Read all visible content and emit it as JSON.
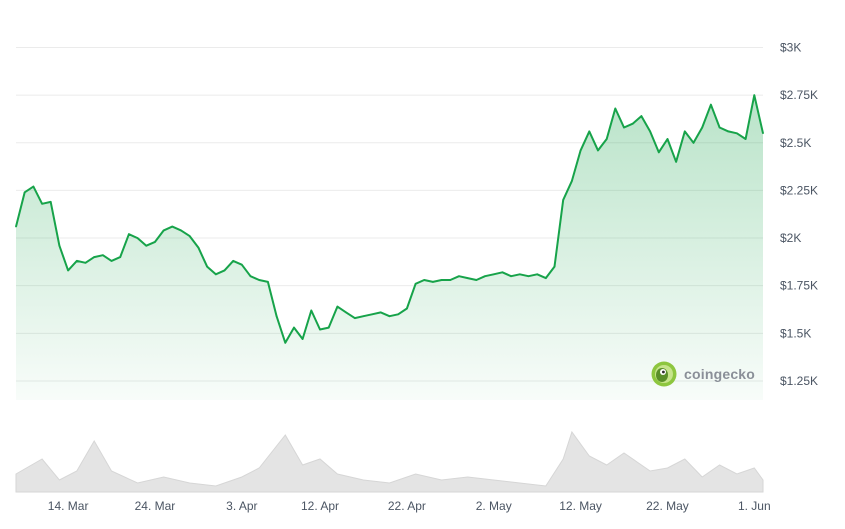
{
  "watermark": {
    "brand": "coingecko",
    "icon": "gecko-logo-icon"
  },
  "chart_data": {
    "type": "area",
    "title": "",
    "xlabel": "",
    "ylabel": "",
    "y_axis_position": "right",
    "grid": true,
    "ylim": [
      1150,
      3050
    ],
    "xlim": [
      "2024-03-08",
      "2024-06-02"
    ],
    "y_ticks": [
      {
        "value": 3000,
        "label": "$3K"
      },
      {
        "value": 2750,
        "label": "$2.75K"
      },
      {
        "value": 2500,
        "label": "$2.5K"
      },
      {
        "value": 2250,
        "label": "$2.25K"
      },
      {
        "value": 2000,
        "label": "$2K"
      },
      {
        "value": 1750,
        "label": "$1.75K"
      },
      {
        "value": 1500,
        "label": "$1.5K"
      },
      {
        "value": 1250,
        "label": "$1.25K"
      }
    ],
    "x_ticks": [
      {
        "date": "2024-03-14",
        "label": "14. Mar"
      },
      {
        "date": "2024-03-24",
        "label": "24. Mar"
      },
      {
        "date": "2024-04-03",
        "label": "3. Apr"
      },
      {
        "date": "2024-04-12",
        "label": "12. Apr"
      },
      {
        "date": "2024-04-22",
        "label": "22. Apr"
      },
      {
        "date": "2024-05-02",
        "label": "2. May"
      },
      {
        "date": "2024-05-12",
        "label": "12. May"
      },
      {
        "date": "2024-05-22",
        "label": "22. May"
      },
      {
        "date": "2024-06-01",
        "label": "1. Jun"
      }
    ],
    "colors": {
      "line": "#17a34a",
      "fill": "#16a34a",
      "volume": "#dcdcdc"
    },
    "series": [
      {
        "values": [
          [
            "2024-03-08",
            2060
          ],
          [
            "2024-03-09",
            2240
          ],
          [
            "2024-03-10",
            2270
          ],
          [
            "2024-03-11",
            2180
          ],
          [
            "2024-03-12",
            2190
          ],
          [
            "2024-03-13",
            1960
          ],
          [
            "2024-03-14",
            1830
          ],
          [
            "2024-03-15",
            1880
          ],
          [
            "2024-03-16",
            1870
          ],
          [
            "2024-03-17",
            1900
          ],
          [
            "2024-03-18",
            1910
          ],
          [
            "2024-03-19",
            1880
          ],
          [
            "2024-03-20",
            1900
          ],
          [
            "2024-03-21",
            2020
          ],
          [
            "2024-03-22",
            2000
          ],
          [
            "2024-03-23",
            1960
          ],
          [
            "2024-03-24",
            1980
          ],
          [
            "2024-03-25",
            2040
          ],
          [
            "2024-03-26",
            2060
          ],
          [
            "2024-03-27",
            2040
          ],
          [
            "2024-03-28",
            2010
          ],
          [
            "2024-03-29",
            1950
          ],
          [
            "2024-03-30",
            1850
          ],
          [
            "2024-03-31",
            1810
          ],
          [
            "2024-04-01",
            1830
          ],
          [
            "2024-04-02",
            1880
          ],
          [
            "2024-04-03",
            1860
          ],
          [
            "2024-04-04",
            1800
          ],
          [
            "2024-04-05",
            1780
          ],
          [
            "2024-04-06",
            1770
          ],
          [
            "2024-04-07",
            1590
          ],
          [
            "2024-04-08",
            1450
          ],
          [
            "2024-04-09",
            1530
          ],
          [
            "2024-04-10",
            1470
          ],
          [
            "2024-04-11",
            1620
          ],
          [
            "2024-04-12",
            1520
          ],
          [
            "2024-04-13",
            1530
          ],
          [
            "2024-04-14",
            1640
          ],
          [
            "2024-04-15",
            1610
          ],
          [
            "2024-04-16",
            1580
          ],
          [
            "2024-04-17",
            1590
          ],
          [
            "2024-04-18",
            1600
          ],
          [
            "2024-04-19",
            1610
          ],
          [
            "2024-04-20",
            1590
          ],
          [
            "2024-04-21",
            1600
          ],
          [
            "2024-04-22",
            1630
          ],
          [
            "2024-04-23",
            1760
          ],
          [
            "2024-04-24",
            1780
          ],
          [
            "2024-04-25",
            1770
          ],
          [
            "2024-04-26",
            1780
          ],
          [
            "2024-04-27",
            1780
          ],
          [
            "2024-04-28",
            1800
          ],
          [
            "2024-04-29",
            1790
          ],
          [
            "2024-04-30",
            1780
          ],
          [
            "2024-05-01",
            1800
          ],
          [
            "2024-05-02",
            1810
          ],
          [
            "2024-05-03",
            1820
          ],
          [
            "2024-05-04",
            1800
          ],
          [
            "2024-05-05",
            1810
          ],
          [
            "2024-05-06",
            1800
          ],
          [
            "2024-05-07",
            1810
          ],
          [
            "2024-05-08",
            1790
          ],
          [
            "2024-05-09",
            1850
          ],
          [
            "2024-05-10",
            2200
          ],
          [
            "2024-05-11",
            2300
          ],
          [
            "2024-05-12",
            2460
          ],
          [
            "2024-05-13",
            2560
          ],
          [
            "2024-05-14",
            2460
          ],
          [
            "2024-05-15",
            2520
          ],
          [
            "2024-05-16",
            2680
          ],
          [
            "2024-05-17",
            2580
          ],
          [
            "2024-05-18",
            2600
          ],
          [
            "2024-05-19",
            2640
          ],
          [
            "2024-05-20",
            2560
          ],
          [
            "2024-05-21",
            2450
          ],
          [
            "2024-05-22",
            2520
          ],
          [
            "2024-05-23",
            2400
          ],
          [
            "2024-05-24",
            2560
          ],
          [
            "2024-05-25",
            2500
          ],
          [
            "2024-05-26",
            2580
          ],
          [
            "2024-05-27",
            2700
          ],
          [
            "2024-05-28",
            2580
          ],
          [
            "2024-05-29",
            2560
          ],
          [
            "2024-05-30",
            2550
          ],
          [
            "2024-05-31",
            2520
          ],
          [
            "2024-06-01",
            2750
          ],
          [
            "2024-06-02",
            2550
          ]
        ]
      }
    ],
    "volume": [
      [
        "2024-03-08",
        0.3
      ],
      [
        "2024-03-11",
        0.55
      ],
      [
        "2024-03-13",
        0.2
      ],
      [
        "2024-03-15",
        0.35
      ],
      [
        "2024-03-17",
        0.85
      ],
      [
        "2024-03-19",
        0.35
      ],
      [
        "2024-03-22",
        0.15
      ],
      [
        "2024-03-25",
        0.25
      ],
      [
        "2024-03-28",
        0.15
      ],
      [
        "2024-03-31",
        0.1
      ],
      [
        "2024-04-03",
        0.25
      ],
      [
        "2024-04-05",
        0.4
      ],
      [
        "2024-04-08",
        0.95
      ],
      [
        "2024-04-10",
        0.45
      ],
      [
        "2024-04-12",
        0.55
      ],
      [
        "2024-04-14",
        0.3
      ],
      [
        "2024-04-17",
        0.2
      ],
      [
        "2024-04-20",
        0.15
      ],
      [
        "2024-04-23",
        0.3
      ],
      [
        "2024-04-26",
        0.2
      ],
      [
        "2024-04-29",
        0.25
      ],
      [
        "2024-05-02",
        0.2
      ],
      [
        "2024-05-05",
        0.15
      ],
      [
        "2024-05-08",
        0.1
      ],
      [
        "2024-05-10",
        0.55
      ],
      [
        "2024-05-11",
        1.0
      ],
      [
        "2024-05-13",
        0.6
      ],
      [
        "2024-05-15",
        0.45
      ],
      [
        "2024-05-17",
        0.65
      ],
      [
        "2024-05-20",
        0.35
      ],
      [
        "2024-05-22",
        0.4
      ],
      [
        "2024-05-24",
        0.55
      ],
      [
        "2024-05-26",
        0.25
      ],
      [
        "2024-05-28",
        0.45
      ],
      [
        "2024-05-30",
        0.3
      ],
      [
        "2024-06-01",
        0.4
      ],
      [
        "2024-06-02",
        0.2
      ]
    ]
  }
}
